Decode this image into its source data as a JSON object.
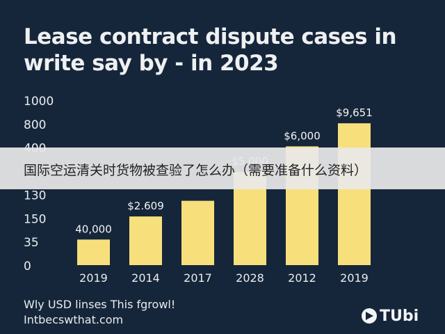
{
  "chart_data": {
    "type": "bar",
    "title": "Lease contract dispute cases in write say by - in 2023",
    "categories": [
      "2019",
      "2014",
      "2017",
      "2028",
      "2012",
      "2019"
    ],
    "values": [
      155,
      295,
      390,
      565,
      720,
      860
    ],
    "data_labels": [
      "40,000",
      "$2.609",
      "",
      "$5,000",
      "$6,000",
      "$9,651"
    ],
    "y_tick_labels": [
      "0",
      "35",
      "150",
      "130",
      "",
      "400",
      "800",
      "1000"
    ],
    "ylim": [
      0,
      1000
    ],
    "bar_color": "#f7e07c",
    "grid": false,
    "legend": "none"
  },
  "overlay": {
    "text": "国际空运清关时货物被查验了怎么办（需要准备什么资料）"
  },
  "footer": {
    "line1": "Wly USD linses This fgrowl!",
    "line2": "Intbecswthat.com"
  },
  "brand": {
    "name": "TUbi",
    "icon": "play-arrow-icon"
  }
}
